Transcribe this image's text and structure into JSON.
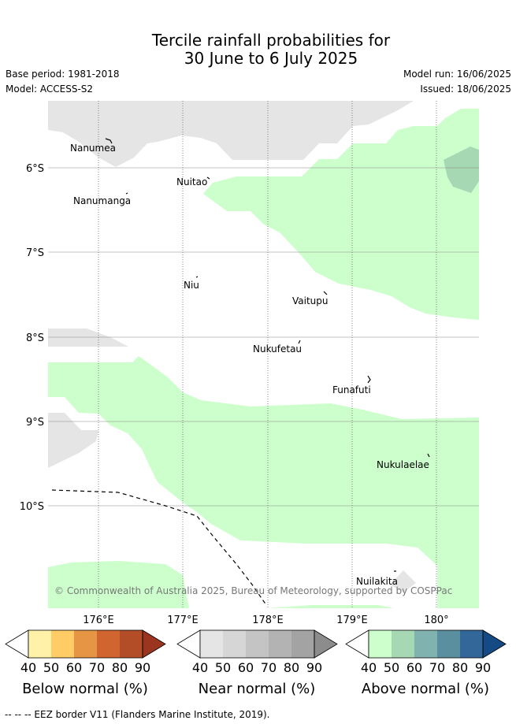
{
  "title_line1": "Tercile rainfall probabilities for",
  "title_line2": "30 June to 6 July 2025",
  "base_period": "Base period: 1981-2018",
  "model": "Model: ACCESS-S2",
  "model_run": "Model run: 16/06/2025",
  "issued": "Issued: 18/06/2025",
  "lat_labels": [
    "6°S",
    "7°S",
    "8°S",
    "9°S",
    "10°S"
  ],
  "lon_labels": [
    "176°E",
    "177°E",
    "178°E",
    "179°E",
    "180°"
  ],
  "places": [
    "Nanumea",
    "Nuitao",
    "Nanumanga",
    "Niu",
    "Vaitupu",
    "Nukufetau",
    "Funafuti",
    "Nukulaelae",
    "Nuilakita"
  ],
  "copyright": "© Commonwealth of Australia 2025, Bureau of Meteorology, supported by COSPPac",
  "colorbars": [
    {
      "title": "Below normal (%)",
      "ticks": [
        "40",
        "50",
        "60",
        "70",
        "80",
        "90"
      ],
      "colors": [
        "#ffffff",
        "#fff2a8",
        "#ffcc66",
        "#e59544",
        "#d06530",
        "#b34d28",
        "#9c3520"
      ]
    },
    {
      "title": "Near normal (%)",
      "ticks": [
        "40",
        "50",
        "60",
        "70",
        "80",
        "90"
      ],
      "colors": [
        "#ffffff",
        "#e5e5e5",
        "#d6d6d6",
        "#c4c4c4",
        "#b3b3b3",
        "#a3a3a3",
        "#8c8c8c"
      ]
    },
    {
      "title": "Above normal (%)",
      "ticks": [
        "40",
        "50",
        "60",
        "70",
        "80",
        "90"
      ],
      "colors": [
        "#ffffff",
        "#ccffcc",
        "#a6d9b3",
        "#80b3b0",
        "#5a8fa0",
        "#336699",
        "#154a85"
      ]
    }
  ],
  "eez_legend": "-- -- -- EEZ border V11 (Flanders Marine Institute, 2019)."
}
